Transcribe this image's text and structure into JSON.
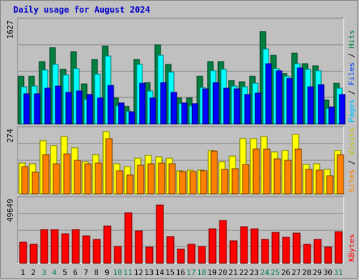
{
  "title": "Daily usage for August 2024",
  "colors": {
    "background": "#c0c0c0",
    "plot": "#c0c0c0",
    "pages": "#0000ff",
    "files": "#00ffff",
    "hits": "#008040",
    "sites": "#ff8000",
    "visits": "#ffff00",
    "kbytes": "#ff0000",
    "weekday_label": "#000000",
    "weekend_label": "#008040"
  },
  "chart_data": [
    {
      "type": "bar",
      "name": "hits_files_pages",
      "ymax_label": "1627",
      "ylim": [
        0,
        1627
      ],
      "right_label_parts": [
        "Pages",
        "Files",
        "Hits"
      ],
      "categories": [
        "1",
        "2",
        "3",
        "4",
        "5",
        "6",
        "7",
        "8",
        "9",
        "10",
        "11",
        "12",
        "13",
        "14",
        "15",
        "16",
        "17",
        "18",
        "19",
        "20",
        "21",
        "22",
        "23",
        "24",
        "25",
        "26",
        "27",
        "28",
        "29",
        "30",
        "31"
      ],
      "series": [
        {
          "name": "Hits",
          "values": [
            760,
            760,
            1000,
            1220,
            880,
            1160,
            640,
            1030,
            1250,
            410,
            280,
            1030,
            660,
            1270,
            950,
            410,
            410,
            760,
            1000,
            1000,
            700,
            670,
            760,
            1480,
            1100,
            810,
            1130,
            960,
            930,
            380,
            650
          ]
        },
        {
          "name": "Files",
          "values": [
            600,
            610,
            860,
            950,
            790,
            890,
            390,
            800,
            1090,
            290,
            200,
            950,
            530,
            1100,
            830,
            320,
            290,
            580,
            850,
            880,
            610,
            590,
            650,
            1200,
            890,
            760,
            960,
            870,
            850,
            250,
            570
          ]
        },
        {
          "name": "Pages",
          "values": [
            480,
            480,
            570,
            610,
            500,
            530,
            470,
            410,
            620,
            340,
            190,
            650,
            410,
            660,
            510,
            340,
            330,
            560,
            660,
            570,
            560,
            470,
            490,
            960,
            850,
            730,
            900,
            590,
            630,
            270,
            470
          ]
        }
      ]
    },
    {
      "type": "bar",
      "name": "visits_sites",
      "ymax_label": "274",
      "ylim": [
        0,
        274
      ],
      "right_label_parts": [
        "Sites",
        "Visits"
      ],
      "categories": [
        "1",
        "2",
        "3",
        "4",
        "5",
        "6",
        "7",
        "8",
        "9",
        "10",
        "11",
        "12",
        "13",
        "14",
        "15",
        "16",
        "17",
        "18",
        "19",
        "20",
        "21",
        "22",
        "23",
        "24",
        "25",
        "26",
        "27",
        "28",
        "29",
        "30",
        "31"
      ],
      "series": [
        {
          "name": "Visits",
          "values": [
            135,
            130,
            230,
            210,
            250,
            200,
            140,
            170,
            270,
            130,
            118,
            155,
            166,
            162,
            155,
            100,
            104,
            104,
            188,
            140,
            164,
            240,
            240,
            250,
            184,
            188,
            260,
            129,
            130,
            108,
            190
          ]
        },
        {
          "name": "Sites",
          "values": [
            120,
            95,
            170,
            130,
            175,
            145,
            130,
            135,
            240,
            99,
            82,
            125,
            130,
            135,
            130,
            97,
            96,
            100,
            185,
            108,
            110,
            128,
            195,
            195,
            152,
            145,
            195,
            108,
            102,
            78,
            170
          ]
        }
      ]
    },
    {
      "type": "bar",
      "name": "kbytes",
      "ymax_label": "49649",
      "ylim": [
        0,
        49649
      ],
      "right_label_parts": [
        "KBytes"
      ],
      "categories": [
        "1",
        "2",
        "3",
        "4",
        "5",
        "6",
        "7",
        "8",
        "9",
        "10",
        "11",
        "12",
        "13",
        "14",
        "15",
        "16",
        "17",
        "18",
        "19",
        "20",
        "21",
        "22",
        "23",
        "24",
        "25",
        "26",
        "27",
        "28",
        "29",
        "30",
        "31"
      ],
      "series": [
        {
          "name": "KBytes",
          "values": [
            17000,
            15200,
            26600,
            26600,
            23200,
            27000,
            21800,
            19200,
            29800,
            13600,
            40000,
            25400,
            13000,
            46400,
            21400,
            11200,
            15200,
            13200,
            27600,
            34200,
            18000,
            29200,
            27200,
            19000,
            24400,
            20400,
            24000,
            15200,
            19200,
            13000,
            25200
          ]
        }
      ]
    }
  ],
  "x_labels": [
    "1",
    "2",
    "3",
    "4",
    "5",
    "6",
    "7",
    "8",
    "9",
    "10",
    "11",
    "12",
    "13",
    "14",
    "15",
    "16",
    "17",
    "18",
    "19",
    "20",
    "21",
    "22",
    "23",
    "24",
    "25",
    "26",
    "27",
    "28",
    "29",
    "30",
    "31"
  ],
  "weekend_days": [
    3,
    4,
    10,
    11,
    17,
    18,
    24,
    25,
    31
  ]
}
